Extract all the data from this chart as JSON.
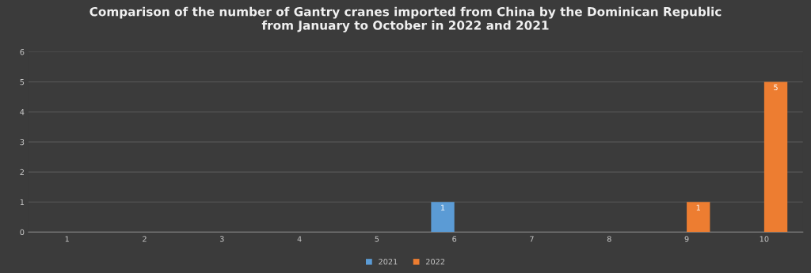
{
  "chart_data": {
    "type": "bar",
    "title": "Comparison of the number of Gantry cranes imported from China by the Dominican Republic\nfrom January to October in 2022 and 2021",
    "categories": [
      "1",
      "2",
      "3",
      "4",
      "5",
      "6",
      "7",
      "8",
      "9",
      "10"
    ],
    "series": [
      {
        "name": "2021",
        "color": "#5b9bd5",
        "values": [
          0,
          0,
          0,
          0,
          0,
          1,
          0,
          0,
          0,
          0
        ],
        "value_labels": [
          null,
          null,
          null,
          null,
          null,
          "1",
          null,
          null,
          null,
          null
        ]
      },
      {
        "name": "2022",
        "color": "#ed7d31",
        "values": [
          0,
          0,
          0,
          0,
          0,
          0,
          0,
          0,
          1,
          5
        ],
        "value_labels": [
          null,
          null,
          null,
          null,
          null,
          null,
          null,
          null,
          "1",
          "5"
        ]
      }
    ],
    "ylim": [
      0,
      6
    ],
    "yticks": [
      0,
      1,
      2,
      3,
      4,
      5,
      6
    ],
    "grid": "y",
    "legend": "bottom"
  }
}
